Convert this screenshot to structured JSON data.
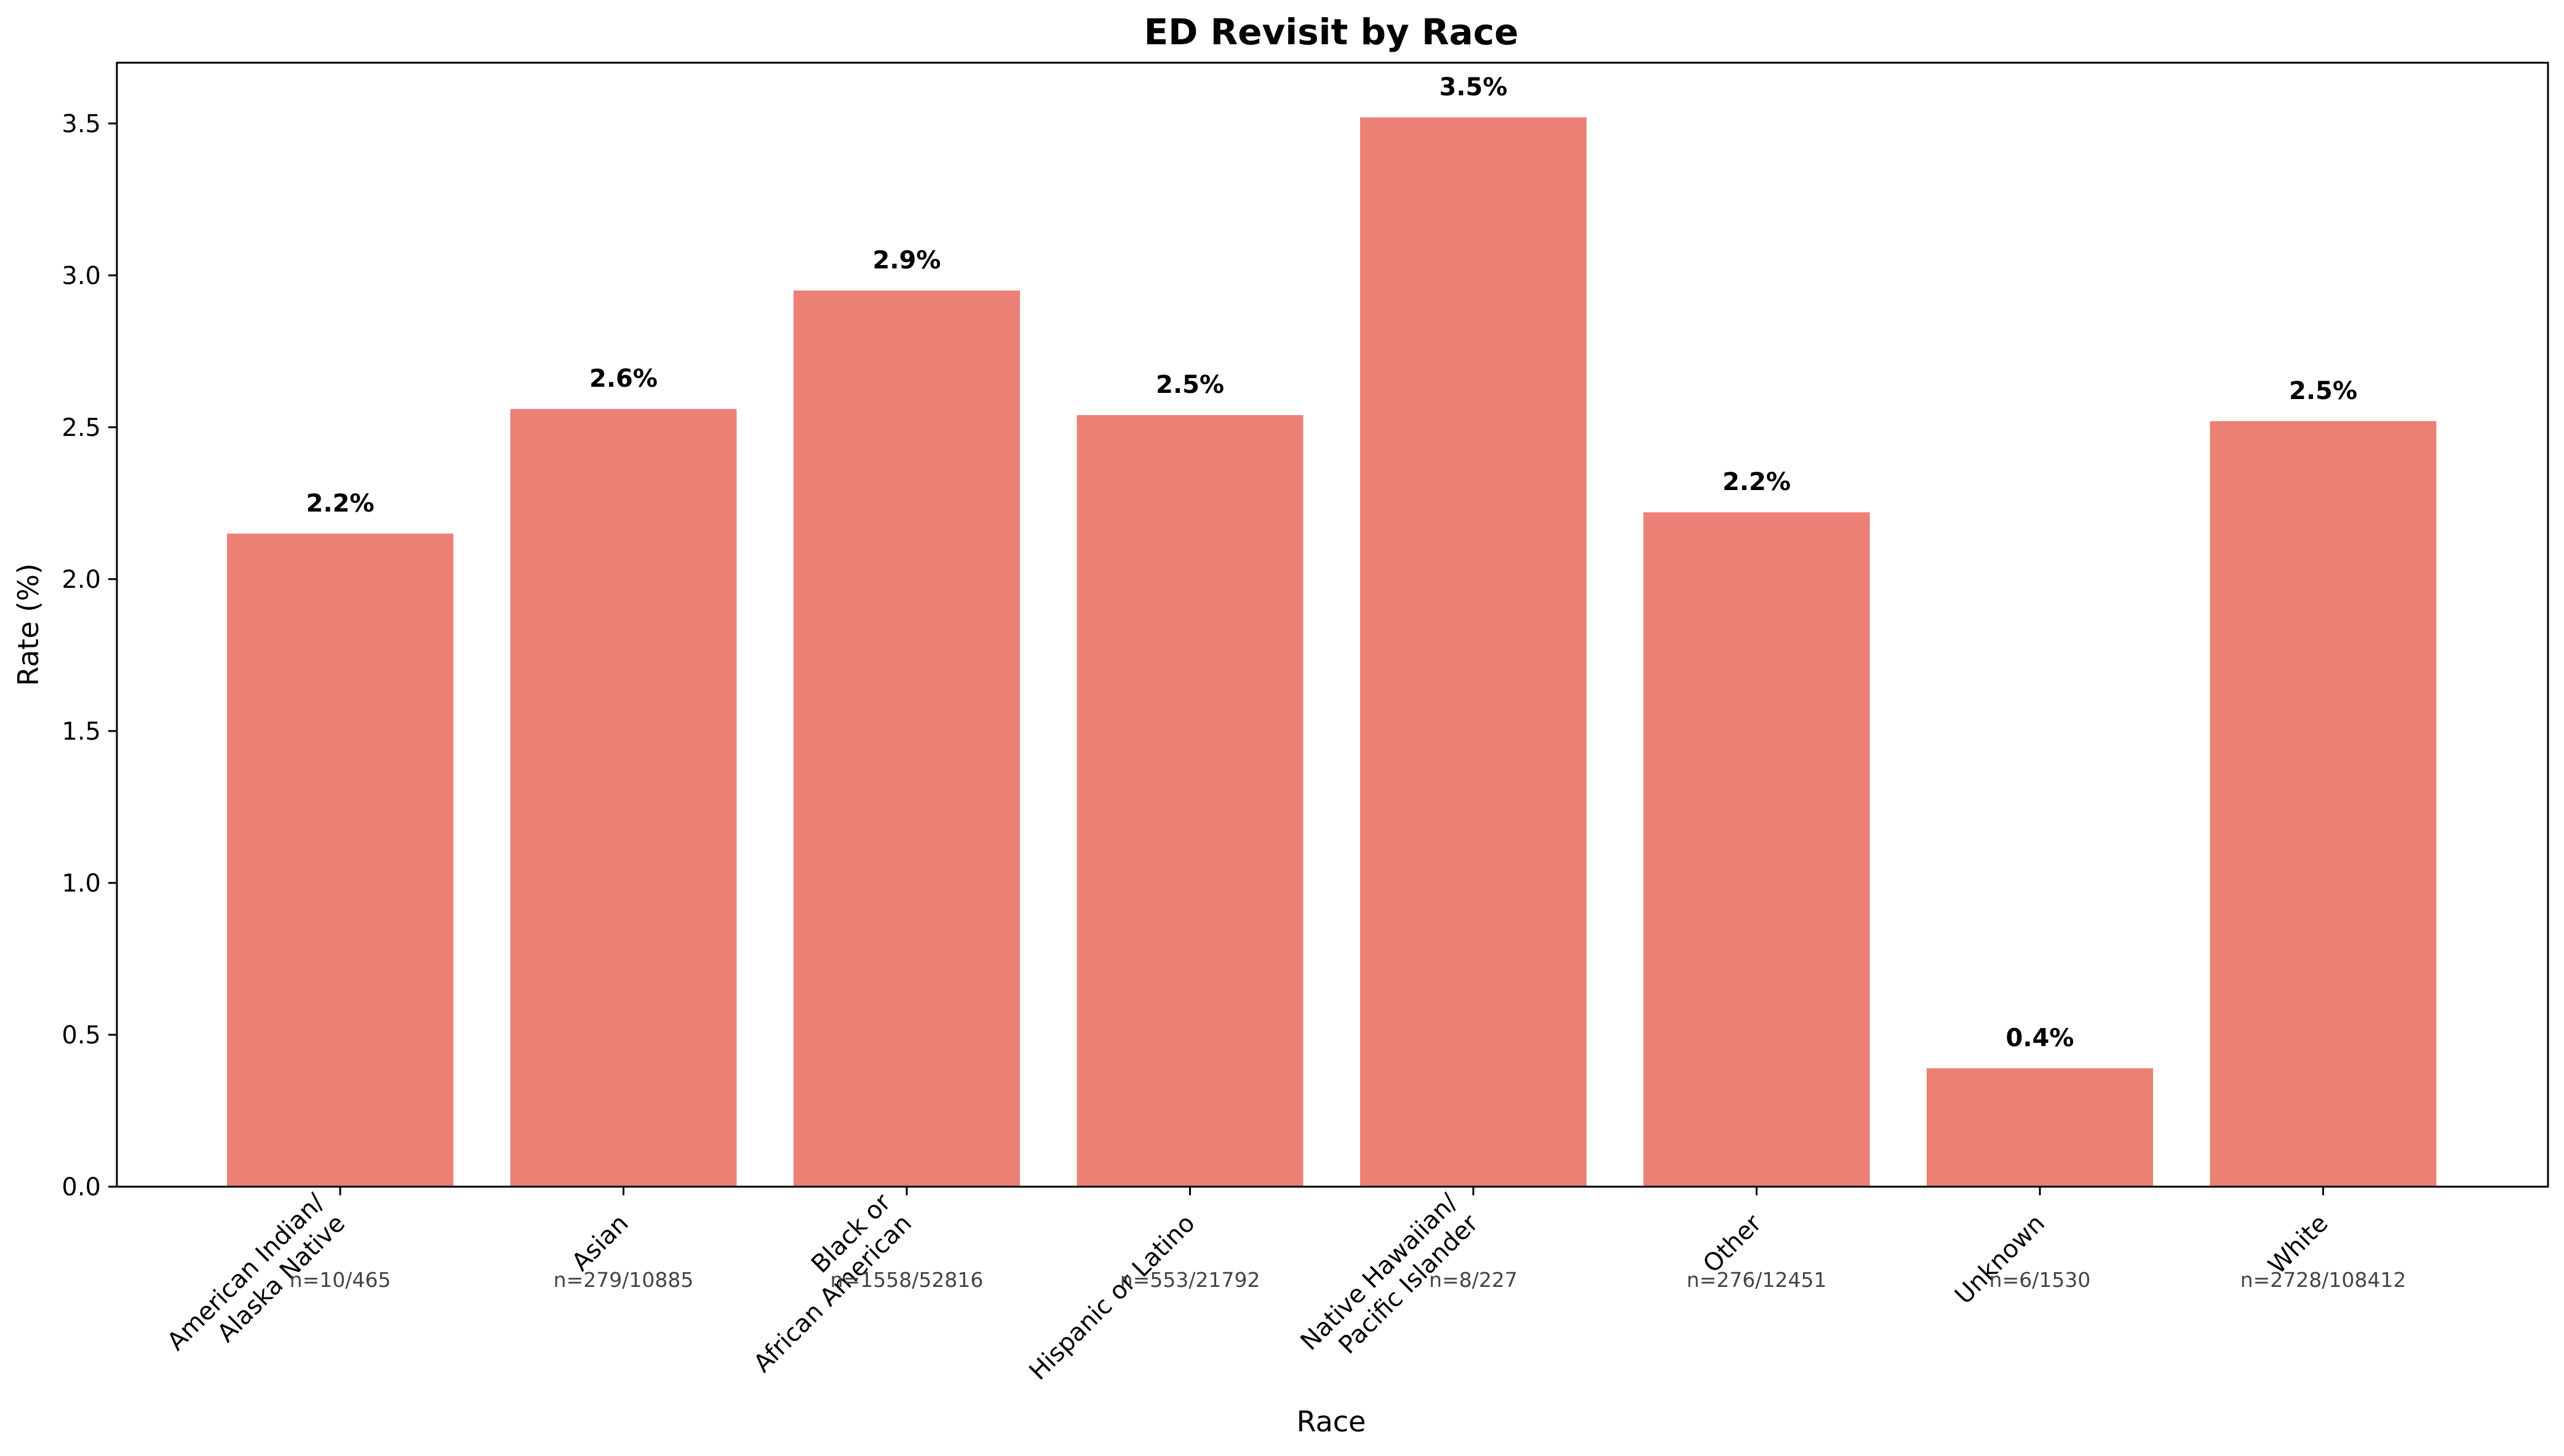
{
  "chart_data": {
    "type": "bar",
    "title": "ED Revisit by Race",
    "xlabel": "Race",
    "ylabel": "Rate (%)",
    "ylim": [
      0,
      3.7
    ],
    "yticks": [
      "0.0",
      "0.5",
      "1.0",
      "1.5",
      "2.0",
      "2.5",
      "3.0",
      "3.5"
    ],
    "grid": false,
    "bar_color": "#ec8074",
    "categories": [
      "American Indian/\nAlaska Native",
      "Asian",
      "Black or\nAfrican American",
      "Hispanic or Latino",
      "Native Hawaiian/\nPacific Islander",
      "Other",
      "Unknown",
      "White"
    ],
    "values": [
      2.15,
      2.56,
      2.95,
      2.54,
      3.52,
      2.22,
      0.39,
      2.52
    ],
    "value_labels": [
      "2.2%",
      "2.6%",
      "2.9%",
      "2.5%",
      "3.5%",
      "2.2%",
      "0.4%",
      "2.5%"
    ],
    "counts": [
      "n=10/465",
      "n=279/10885",
      "n=1558/52816",
      "n=553/21792",
      "n=8/227",
      "n=276/12451",
      "n=6/1530",
      "n=2728/108412"
    ]
  }
}
